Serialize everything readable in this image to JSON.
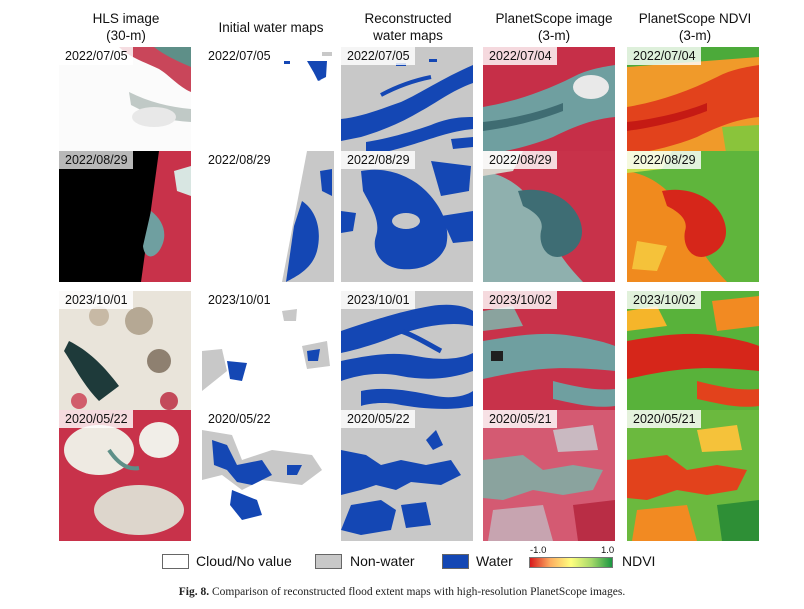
{
  "columns": [
    {
      "line1": "HLS image",
      "line2": "(30-m)"
    },
    {
      "line1": "Initial water maps",
      "line2": ""
    },
    {
      "line1": "Reconstructed",
      "line2": "water maps"
    },
    {
      "line1": "PlanetScope image",
      "line2": "(3-m)"
    },
    {
      "line1": "PlanetScope NDVI",
      "line2": "(3-m)"
    }
  ],
  "rows": [
    {
      "dates": [
        "2022/07/05",
        "2022/07/05",
        "2022/07/05",
        "2022/07/04",
        "2022/07/04"
      ]
    },
    {
      "dates": [
        "2022/08/29",
        "2022/08/29",
        "2022/08/29",
        "2022/08/29",
        "2022/08/29"
      ]
    },
    {
      "dates": [
        "2023/10/01",
        "2023/10/01",
        "2023/10/01",
        "2023/10/02",
        "2023/10/02"
      ]
    },
    {
      "dates": [
        "2020/05/22",
        "2020/05/22",
        "2020/05/22",
        "2020/05/21",
        "2020/05/21"
      ]
    }
  ],
  "legend": {
    "cloud": "Cloud/No value",
    "nonwater": "Non-water",
    "water": "Water",
    "ndvi_min": "-1.0",
    "ndvi_max": "1.0",
    "ndvi_label": "NDVI"
  },
  "caption": {
    "label": "Fig. 8.",
    "text": "Comparison of reconstructed flood extent maps with high-resolution PlanetScope images."
  },
  "colors": {
    "water": "#1447b4",
    "nonwater": "#c8c8c8",
    "cloud": "#ffffff",
    "vegetation_red": "#c8273e",
    "river_teal": "#6f9fa0",
    "ndvi_low": "#d7191c",
    "ndvi_high": "#1a9641"
  }
}
